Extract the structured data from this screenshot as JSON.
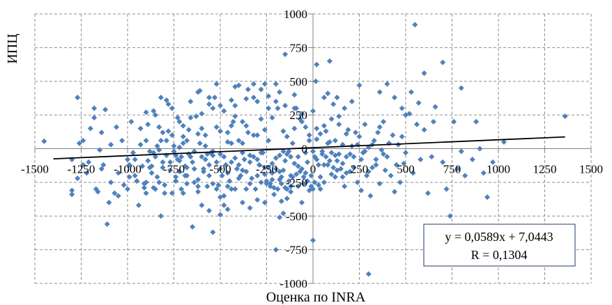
{
  "chart_data": {
    "type": "scatter",
    "xlabel": "Оценка по INRA",
    "ylabel": "ИПЦ",
    "xlim": [
      -1500,
      1500
    ],
    "ylim": [
      -1000,
      1000
    ],
    "x_ticks": [
      "-1500",
      "-1250",
      "-1000",
      "-750",
      "-500",
      "-250",
      "0",
      "250",
      "500",
      "750",
      "1000",
      "1250",
      "1500"
    ],
    "y_ticks": [
      "1000",
      "750",
      "500",
      "250",
      "0",
      "-250",
      "-500",
      "-750",
      "-1000"
    ],
    "y_tick_values": [
      1000,
      750,
      500,
      250,
      0,
      -250,
      -500,
      -750,
      -1000
    ],
    "grid": true,
    "marker_color": "#4f81bd",
    "trendline": {
      "slope": 0.0589,
      "intercept": 7.0443,
      "color": "#000000"
    },
    "equation": "y = 0,0589x + 7,0443",
    "r_text": "R = 0,1304",
    "points": [
      [
        -1450,
        55
      ],
      [
        -1300,
        -80
      ],
      [
        -1300,
        -340
      ],
      [
        -1270,
        380
      ],
      [
        -1260,
        40
      ],
      [
        -1240,
        -120
      ],
      [
        -1220,
        -180
      ],
      [
        -1200,
        150
      ],
      [
        -1180,
        230
      ],
      [
        -1170,
        -300
      ],
      [
        -1150,
        -10
      ],
      [
        -1140,
        120
      ],
      [
        -1130,
        -120
      ],
      [
        -1120,
        290
      ],
      [
        -1110,
        -560
      ],
      [
        -1100,
        -400
      ],
      [
        -1090,
        30
      ],
      [
        -1070,
        -330
      ],
      [
        -1060,
        160
      ],
      [
        -1050,
        -180
      ],
      [
        -1030,
        60
      ],
      [
        -1020,
        -270
      ],
      [
        -1000,
        -80
      ],
      [
        -990,
        -120
      ],
      [
        -980,
        200
      ],
      [
        -970,
        -30
      ],
      [
        -960,
        -200
      ],
      [
        -950,
        -240
      ],
      [
        -940,
        -420
      ],
      [
        -930,
        30
      ],
      [
        -920,
        -130
      ],
      [
        -910,
        -260
      ],
      [
        -900,
        60
      ],
      [
        -890,
        -90
      ],
      [
        -880,
        -20
      ],
      [
        -870,
        -180
      ],
      [
        -860,
        280
      ],
      [
        -850,
        -60
      ],
      [
        -840,
        20
      ],
      [
        -830,
        -250
      ],
      [
        -820,
        -500
      ],
      [
        -810,
        -100
      ],
      [
        -800,
        -270
      ],
      [
        -790,
        60
      ],
      [
        -780,
        130
      ],
      [
        -770,
        -160
      ],
      [
        -760,
        -330
      ],
      [
        -750,
        20
      ],
      [
        -740,
        -210
      ],
      [
        -730,
        -80
      ],
      [
        -720,
        200
      ],
      [
        -710,
        -300
      ],
      [
        -700,
        90
      ],
      [
        -690,
        -130
      ],
      [
        -680,
        -200
      ],
      [
        -670,
        -40
      ],
      [
        -660,
        350
      ],
      [
        -650,
        -100
      ],
      [
        -640,
        -250
      ],
      [
        -630,
        240
      ],
      [
        -620,
        -320
      ],
      [
        -610,
        40
      ],
      [
        -600,
        150
      ],
      [
        -590,
        -170
      ],
      [
        -580,
        -80
      ],
      [
        -570,
        -280
      ],
      [
        -560,
        330
      ],
      [
        -550,
        -30
      ],
      [
        -540,
        -50
      ],
      [
        -530,
        380
      ],
      [
        -520,
        -100
      ],
      [
        -510,
        -270
      ],
      [
        -500,
        130
      ],
      [
        -490,
        -200
      ],
      [
        -480,
        280
      ],
      [
        -470,
        -120
      ],
      [
        -460,
        50
      ],
      [
        -450,
        -240
      ],
      [
        -440,
        -300
      ],
      [
        -430,
        200
      ],
      [
        -420,
        -70
      ],
      [
        -410,
        -150
      ],
      [
        -400,
        60
      ],
      [
        -390,
        -200
      ],
      [
        -380,
        -30
      ],
      [
        -370,
        -80
      ],
      [
        -360,
        170
      ],
      [
        -350,
        120
      ],
      [
        -340,
        -100
      ],
      [
        -330,
        -220
      ],
      [
        -320,
        -60
      ],
      [
        -310,
        -300
      ],
      [
        -300,
        100
      ],
      [
        -290,
        -120
      ],
      [
        -280,
        220
      ],
      [
        -270,
        -30
      ],
      [
        -260,
        -190
      ],
      [
        -250,
        -260
      ],
      [
        -240,
        60
      ],
      [
        -230,
        -280
      ],
      [
        -220,
        -110
      ],
      [
        -210,
        -340
      ],
      [
        -200,
        -150
      ],
      [
        -190,
        300
      ],
      [
        -180,
        -50
      ],
      [
        -170,
        -210
      ],
      [
        -160,
        130
      ],
      [
        -150,
        -90
      ],
      [
        -140,
        -300
      ],
      [
        -130,
        -20
      ],
      [
        -120,
        -200
      ],
      [
        -110,
        40
      ],
      [
        -100,
        -110
      ],
      [
        -90,
        300
      ],
      [
        -80,
        -60
      ],
      [
        -70,
        220
      ],
      [
        -60,
        -150
      ],
      [
        -50,
        -260
      ],
      [
        -40,
        -30
      ],
      [
        -30,
        -100
      ],
      [
        -20,
        100
      ],
      [
        -10,
        -200
      ],
      [
        0,
        280
      ],
      [
        10,
        -60
      ],
      [
        20,
        150
      ],
      [
        30,
        -120
      ],
      [
        40,
        -300
      ],
      [
        50,
        -40
      ],
      [
        60,
        -250
      ],
      [
        70,
        130
      ],
      [
        80,
        -120
      ],
      [
        90,
        50
      ],
      [
        100,
        -30
      ],
      [
        110,
        330
      ],
      [
        120,
        -210
      ],
      [
        130,
        -90
      ],
      [
        140,
        240
      ],
      [
        150,
        -150
      ],
      [
        160,
        30
      ],
      [
        170,
        -280
      ],
      [
        180,
        -60
      ],
      [
        190,
        140
      ],
      [
        200,
        -170
      ],
      [
        210,
        20
      ],
      [
        220,
        -60
      ],
      [
        230,
        120
      ],
      [
        240,
        -250
      ],
      [
        250,
        90
      ],
      [
        260,
        -310
      ],
      [
        270,
        -30
      ],
      [
        280,
        180
      ],
      [
        290,
        -200
      ],
      [
        300,
        10
      ],
      [
        310,
        -350
      ],
      [
        320,
        -140
      ],
      [
        330,
        60
      ],
      [
        340,
        -80
      ],
      [
        350,
        120
      ],
      [
        360,
        -260
      ],
      [
        370,
        -10
      ],
      [
        380,
        200
      ],
      [
        390,
        -160
      ],
      [
        400,
        -60
      ],
      [
        410,
        40
      ],
      [
        420,
        -200
      ],
      [
        430,
        100
      ],
      [
        440,
        -320
      ],
      [
        450,
        -120
      ],
      [
        460,
        30
      ],
      [
        470,
        -250
      ],
      [
        480,
        90
      ],
      [
        490,
        -110
      ],
      [
        500,
        -30
      ],
      [
        520,
        260
      ],
      [
        540,
        -180
      ],
      [
        560,
        180
      ],
      [
        580,
        -80
      ],
      [
        600,
        140
      ],
      [
        620,
        -330
      ],
      [
        640,
        -60
      ],
      [
        660,
        310
      ],
      [
        700,
        -100
      ],
      [
        720,
        -300
      ],
      [
        740,
        -500
      ],
      [
        760,
        200
      ],
      [
        780,
        -150
      ],
      [
        800,
        -20
      ],
      [
        820,
        -200
      ],
      [
        860,
        -80
      ],
      [
        880,
        200
      ],
      [
        900,
        0
      ],
      [
        920,
        -180
      ],
      [
        940,
        -360
      ],
      [
        970,
        -100
      ],
      [
        1030,
        50
      ],
      [
        1360,
        240
      ],
      [
        -700,
        -330
      ],
      [
        -680,
        60
      ],
      [
        -560,
        -120
      ],
      [
        -540,
        300
      ],
      [
        -520,
        480
      ],
      [
        -500,
        -150
      ],
      [
        -480,
        -350
      ],
      [
        -460,
        -450
      ],
      [
        -440,
        170
      ],
      [
        -420,
        240
      ],
      [
        -400,
        -220
      ],
      [
        -380,
        200
      ],
      [
        -360,
        -170
      ],
      [
        -340,
        -50
      ],
      [
        -320,
        380
      ],
      [
        -300,
        -80
      ],
      [
        -280,
        -30
      ],
      [
        -260,
        140
      ],
      [
        -240,
        -140
      ],
      [
        -220,
        230
      ],
      [
        -200,
        -70
      ],
      [
        -180,
        420
      ],
      [
        -160,
        -20
      ],
      [
        -140,
        90
      ],
      [
        -120,
        -60
      ],
      [
        -100,
        150
      ],
      [
        -80,
        -130
      ],
      [
        -60,
        200
      ],
      [
        -40,
        -180
      ],
      [
        -20,
        60
      ],
      [
        0,
        -20
      ],
      [
        20,
        -80
      ],
      [
        40,
        110
      ],
      [
        60,
        170
      ],
      [
        80,
        40
      ],
      [
        100,
        -190
      ],
      [
        120,
        60
      ],
      [
        140,
        -40
      ],
      [
        160,
        -110
      ],
      [
        180,
        -180
      ],
      [
        -620,
        -230
      ],
      [
        -600,
        260
      ],
      [
        -580,
        100
      ],
      [
        -560,
        -200
      ],
      [
        -540,
        -20
      ],
      [
        -520,
        160
      ],
      [
        -500,
        -40
      ],
      [
        -480,
        -60
      ],
      [
        -460,
        -180
      ],
      [
        -440,
        40
      ],
      [
        -760,
        300
      ],
      [
        -740,
        -240
      ],
      [
        -720,
        10
      ],
      [
        -700,
        170
      ],
      [
        -680,
        -140
      ],
      [
        -660,
        230
      ],
      [
        -640,
        -20
      ],
      [
        -620,
        110
      ],
      [
        -600,
        -60
      ],
      [
        -580,
        20
      ],
      [
        -850,
        -300
      ],
      [
        -830,
        160
      ],
      [
        -810,
        -140
      ],
      [
        -790,
        360
      ],
      [
        -770,
        -100
      ],
      [
        -750,
        -20
      ],
      [
        -730,
        230
      ],
      [
        -710,
        -60
      ],
      [
        -690,
        -200
      ],
      [
        -670,
        140
      ],
      [
        -900,
        -250
      ],
      [
        -880,
        -140
      ],
      [
        -860,
        -30
      ],
      [
        -840,
        -210
      ],
      [
        -820,
        60
      ],
      [
        -800,
        -330
      ],
      [
        -780,
        330
      ],
      [
        -760,
        100
      ],
      [
        -740,
        -50
      ],
      [
        -720,
        -170
      ],
      [
        -1000,
        -300
      ],
      [
        -960,
        -80
      ],
      [
        -930,
        150
      ],
      [
        -910,
        -290
      ],
      [
        -890,
        180
      ],
      [
        -870,
        -130
      ],
      [
        -850,
        250
      ],
      [
        -830,
        -10
      ],
      [
        -810,
        120
      ],
      [
        -790,
        -50
      ],
      [
        -400,
        470
      ],
      [
        -380,
        -400
      ],
      [
        -360,
        -300
      ],
      [
        -340,
        -440
      ],
      [
        -320,
        100
      ],
      [
        -300,
        -380
      ],
      [
        -280,
        -250
      ],
      [
        -260,
        -140
      ],
      [
        -240,
        300
      ],
      [
        -220,
        -180
      ],
      [
        -200,
        480
      ],
      [
        -180,
        -230
      ],
      [
        -160,
        -480
      ],
      [
        -140,
        -40
      ],
      [
        -120,
        -320
      ],
      [
        -100,
        400
      ],
      [
        -80,
        -280
      ],
      [
        -60,
        -400
      ],
      [
        -40,
        160
      ],
      [
        -20,
        -310
      ],
      [
        0,
        -300
      ],
      [
        20,
        70
      ],
      [
        40,
        -210
      ],
      [
        60,
        -120
      ],
      [
        80,
        410
      ],
      [
        100,
        220
      ],
      [
        120,
        -50
      ],
      [
        140,
        180
      ],
      [
        160,
        -210
      ],
      [
        180,
        110
      ],
      [
        200,
        -40
      ],
      [
        220,
        -140
      ],
      [
        240,
        30
      ],
      [
        260,
        -80
      ],
      [
        280,
        -20
      ],
      [
        300,
        -170
      ],
      [
        320,
        30
      ],
      [
        340,
        -120
      ],
      [
        360,
        160
      ],
      [
        380,
        -40
      ],
      [
        -560,
        -460
      ],
      [
        -540,
        -260
      ],
      [
        -520,
        -300
      ],
      [
        -500,
        -360
      ],
      [
        -480,
        -420
      ],
      [
        -460,
        120
      ],
      [
        -440,
        -100
      ],
      [
        -420,
        320
      ],
      [
        -400,
        -120
      ],
      [
        -380,
        40
      ],
      [
        -540,
        -620
      ],
      [
        -500,
        -490
      ],
      [
        -460,
        -280
      ],
      [
        -420,
        -300
      ],
      [
        -380,
        -160
      ],
      [
        -340,
        -260
      ],
      [
        -300,
        -200
      ],
      [
        -260,
        -400
      ],
      [
        -220,
        -230
      ],
      [
        -180,
        -170
      ],
      [
        -650,
        -580
      ],
      [
        -600,
        -420
      ],
      [
        -640,
        -150
      ],
      [
        -660,
        -60
      ],
      [
        -680,
        -260
      ],
      [
        -700,
        40
      ],
      [
        -720,
        -90
      ],
      [
        -620,
        -280
      ],
      [
        -590,
        -150
      ],
      [
        -570,
        -40
      ],
      [
        -250,
        -240
      ],
      [
        -230,
        -260
      ],
      [
        -210,
        -290
      ],
      [
        -190,
        -300
      ],
      [
        -170,
        -260
      ],
      [
        -150,
        -290
      ],
      [
        -130,
        -240
      ],
      [
        -110,
        -210
      ],
      [
        -90,
        -190
      ],
      [
        -70,
        -170
      ],
      [
        -50,
        -210
      ],
      [
        -30,
        -240
      ],
      [
        -10,
        -280
      ],
      [
        10,
        -250
      ],
      [
        30,
        -270
      ],
      [
        50,
        -20
      ],
      [
        70,
        -60
      ],
      [
        90,
        -90
      ],
      [
        110,
        -140
      ],
      [
        130,
        -160
      ],
      [
        -180,
        -510
      ],
      [
        -170,
        -390
      ],
      [
        -160,
        -160
      ],
      [
        -140,
        -370
      ],
      [
        -120,
        -280
      ],
      [
        -200,
        -750
      ],
      [
        0,
        -680
      ],
      [
        300,
        -930
      ],
      [
        90,
        650
      ],
      [
        20,
        625
      ],
      [
        -150,
        700
      ],
      [
        15,
        500
      ],
      [
        -260,
        480
      ],
      [
        -350,
        440
      ],
      [
        -500,
        320
      ],
      [
        -610,
        430
      ],
      [
        -820,
        380
      ],
      [
        -900,
        270
      ],
      [
        -1180,
        300
      ],
      [
        -1270,
        -220
      ],
      [
        -1300,
        -310
      ],
      [
        -1050,
        -350
      ],
      [
        -900,
        -330
      ],
      [
        -860,
        -290
      ],
      [
        -1160,
        -320
      ],
      [
        -990,
        -210
      ],
      [
        -1090,
        -250
      ],
      [
        -1140,
        -150
      ],
      [
        -1210,
        -100
      ],
      [
        -1240,
        60
      ],
      [
        550,
        920
      ],
      [
        700,
        640
      ],
      [
        600,
        560
      ],
      [
        800,
        450
      ],
      [
        530,
        420
      ],
      [
        570,
        340
      ],
      [
        650,
        200
      ],
      [
        -620,
        420
      ],
      [
        -560,
        380
      ],
      [
        -300,
        350
      ],
      [
        -440,
        360
      ],
      [
        -420,
        460
      ],
      [
        -360,
        370
      ],
      [
        -320,
        480
      ],
      [
        -280,
        440
      ],
      [
        -240,
        390
      ],
      [
        -200,
        350
      ],
      [
        -150,
        320
      ],
      [
        -100,
        300
      ],
      [
        -60,
        260
      ],
      [
        360,
        420
      ],
      [
        400,
        480
      ],
      [
        440,
        380
      ],
      [
        480,
        300
      ],
      [
        500,
        250
      ],
      [
        250,
        470
      ],
      [
        210,
        350
      ],
      [
        170,
        300
      ],
      [
        130,
        380
      ],
      [
        60,
        380
      ]
    ]
  }
}
